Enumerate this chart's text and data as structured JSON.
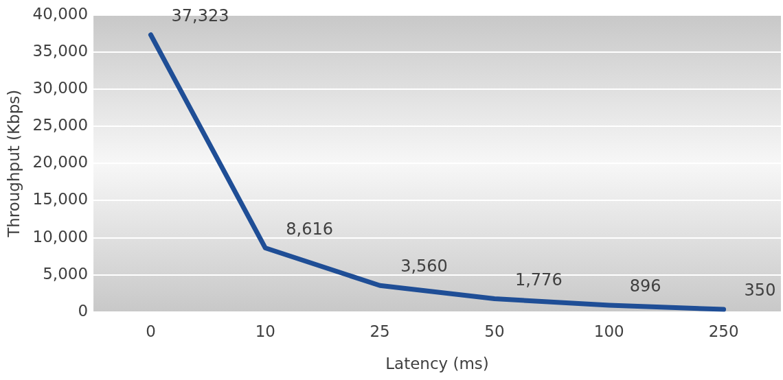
{
  "chart_data": {
    "type": "line",
    "xlabel": "Latency (ms)",
    "ylabel": "Throughput (Kbps)",
    "categories": [
      "0",
      "10",
      "25",
      "50",
      "100",
      "250"
    ],
    "series": [
      {
        "color": "#1f4e96",
        "values": [
          37323,
          8616,
          3560,
          1776,
          896,
          350
        ],
        "value_labels": [
          "37,323",
          "8,616",
          "3,560",
          "1,776",
          "896",
          "350"
        ]
      }
    ],
    "ylim": [
      0,
      40000
    ],
    "yticks": [
      {
        "value": 0,
        "label": "0"
      },
      {
        "value": 5000,
        "label": "5,000"
      },
      {
        "value": 10000,
        "label": "10,000"
      },
      {
        "value": 15000,
        "label": "15,000"
      },
      {
        "value": 20000,
        "label": "20,000"
      },
      {
        "value": 25000,
        "label": "25,000"
      },
      {
        "value": 30000,
        "label": "30,000"
      },
      {
        "value": 35000,
        "label": "35,000"
      },
      {
        "value": 40000,
        "label": "40,000"
      }
    ],
    "grid": "y",
    "legend": false,
    "marker": "none",
    "line_style": "solid"
  }
}
